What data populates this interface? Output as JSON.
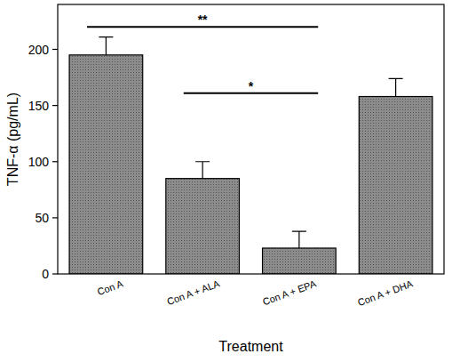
{
  "chart_data": {
    "type": "bar",
    "x_label": "Treatment",
    "y_label": "TNF-α (pg/mL)",
    "categories": [
      "Con A",
      "Con A + ALA",
      "Con A + EPA",
      "Con A + DHA"
    ],
    "values": [
      195,
      85,
      23,
      158
    ],
    "errors": [
      16,
      15,
      15,
      16
    ],
    "color": "#8c8c8c",
    "ylim": [
      0,
      240
    ],
    "yticks": [
      0,
      50,
      100,
      150,
      200
    ],
    "grid": false,
    "annotations": [
      {
        "text": "**",
        "from": "Con A",
        "to": "Con A + EPA",
        "y": 220
      },
      {
        "text": "*",
        "from": "Con A + ALA",
        "to": "Con A + EPA",
        "y": 161
      }
    ]
  }
}
